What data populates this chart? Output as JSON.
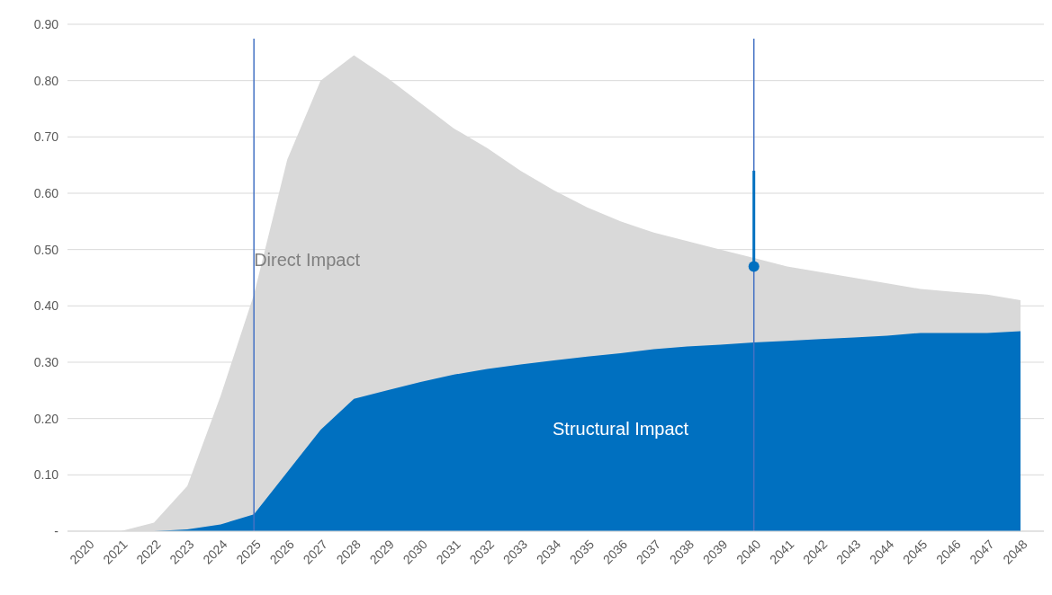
{
  "chart_data": {
    "type": "area",
    "categories": [
      "2020",
      "2021",
      "2022",
      "2023",
      "2024",
      "2025",
      "2026",
      "2027",
      "2028",
      "2029",
      "2030",
      "2031",
      "2032",
      "2033",
      "2034",
      "2035",
      "2036",
      "2037",
      "2038",
      "2039",
      "2040",
      "2041",
      "2042",
      "2043",
      "2044",
      "2045",
      "2046",
      "2047",
      "2048"
    ],
    "series": [
      {
        "name": "Direct Impact",
        "color": "#d9d9d9",
        "values": [
          0,
          0,
          0.015,
          0.08,
          0.24,
          0.42,
          0.66,
          0.8,
          0.845,
          0.805,
          0.76,
          0.715,
          0.68,
          0.64,
          0.605,
          0.575,
          0.55,
          0.53,
          0.515,
          0.5,
          0.485,
          0.47,
          0.46,
          0.45,
          0.44,
          0.43,
          0.425,
          0.42,
          0.41
        ]
      },
      {
        "name": "Structural Impact",
        "color": "#0070c0",
        "values": [
          0,
          0,
          0,
          0.003,
          0.012,
          0.03,
          0.105,
          0.18,
          0.235,
          0.25,
          0.265,
          0.278,
          0.288,
          0.296,
          0.303,
          0.31,
          0.316,
          0.323,
          0.328,
          0.331,
          0.335,
          0.338,
          0.341,
          0.344,
          0.347,
          0.352,
          0.352,
          0.352,
          0.355
        ]
      },
      {
        "type": "scatter",
        "color": "#0070c0",
        "marker": "circle",
        "values": [
          null,
          null,
          null,
          null,
          null,
          null,
          null,
          null,
          null,
          null,
          null,
          null,
          null,
          null,
          null,
          null,
          null,
          null,
          null,
          null,
          0.47,
          null,
          null,
          null,
          null,
          null,
          null,
          null,
          null
        ],
        "errors": [
          null,
          null,
          null,
          null,
          null,
          null,
          null,
          null,
          null,
          null,
          null,
          null,
          null,
          null,
          null,
          null,
          null,
          null,
          null,
          null,
          [
            0.47,
            0.64
          ],
          null,
          null,
          null,
          null,
          null,
          null,
          null,
          null
        ]
      }
    ],
    "ylim": [
      0,
      0.9
    ],
    "yticks": [
      {
        "value": 0,
        "label": "-"
      },
      {
        "value": 0.1,
        "label": "0.10"
      },
      {
        "value": 0.2,
        "label": "0.20"
      },
      {
        "value": 0.3,
        "label": "0.30"
      },
      {
        "value": 0.4,
        "label": "0.40"
      },
      {
        "value": 0.5,
        "label": "0.50"
      },
      {
        "value": 0.6,
        "label": "0.60"
      },
      {
        "value": 0.7,
        "label": "0.70"
      },
      {
        "value": 0.8,
        "label": "0.80"
      },
      {
        "value": 0.9,
        "label": "0.90"
      }
    ],
    "grid": "y",
    "ref_lines": [
      {
        "axis": "x",
        "value": "2025",
        "color": "#4472c4"
      },
      {
        "axis": "x",
        "value": "2040",
        "color": "#4472c4"
      }
    ]
  }
}
